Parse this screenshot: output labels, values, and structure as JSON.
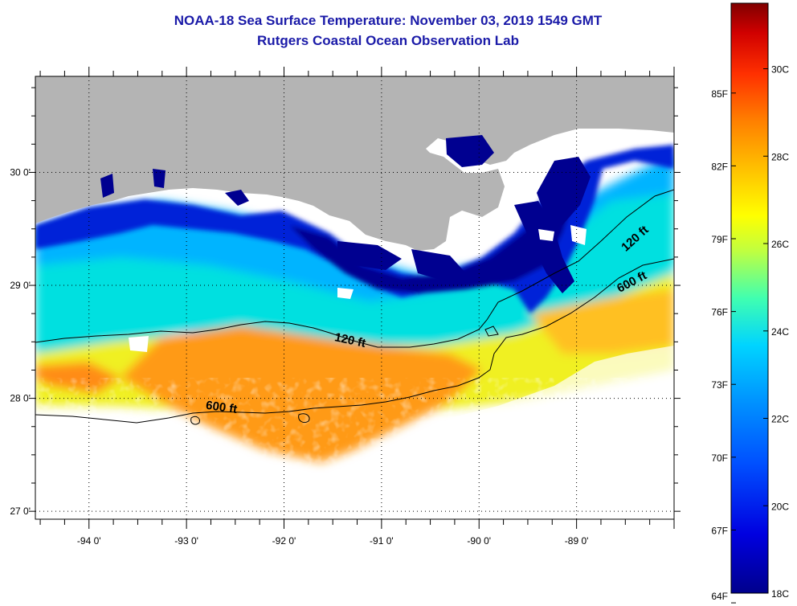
{
  "title": "NOAA-18 Sea Surface Temperature:  November 03, 2019 1549 GMT",
  "subtitle": "Rutgers Coastal Ocean Observation Lab",
  "map": {
    "lat_labels": [
      "30 0'",
      "29 0'",
      "28 0'",
      "27 0'"
    ],
    "lat_values": [
      30,
      29,
      28,
      27
    ],
    "lon_labels": [
      "-94 0'",
      "-93 0'",
      "-92 0'",
      "-91 0'",
      "-90 0'",
      "-89 0'"
    ],
    "lon_values": [
      -94,
      -93,
      -92,
      -91,
      -90,
      -89
    ],
    "extent": {
      "lon_min": -94.55,
      "lon_max": -88.0,
      "lat_min": 26.93,
      "lat_max": 30.85
    },
    "isobath_labels": {
      "shelf_120_west": "120 ft",
      "shelf_120_east": "120 ft",
      "slope_600_west": "600 ft",
      "slope_600_east": "600 ft"
    },
    "land_color": "#b4b4b4",
    "cloud_color": "#ffffff"
  },
  "colorbar": {
    "celsius_labels": [
      "30C",
      "28C",
      "26C",
      "24C",
      "22C",
      "20C",
      "18C"
    ],
    "celsius_values": [
      30,
      28,
      26,
      24,
      22,
      20,
      18
    ],
    "fahrenheit_labels": [
      "85F",
      "82F",
      "79F",
      "76F",
      "73F",
      "70F",
      "67F",
      "64F"
    ],
    "fahrenheit_values": [
      85,
      82,
      79,
      76,
      73,
      70,
      67,
      64
    ],
    "range_celsius": [
      18,
      31.5
    ]
  }
}
